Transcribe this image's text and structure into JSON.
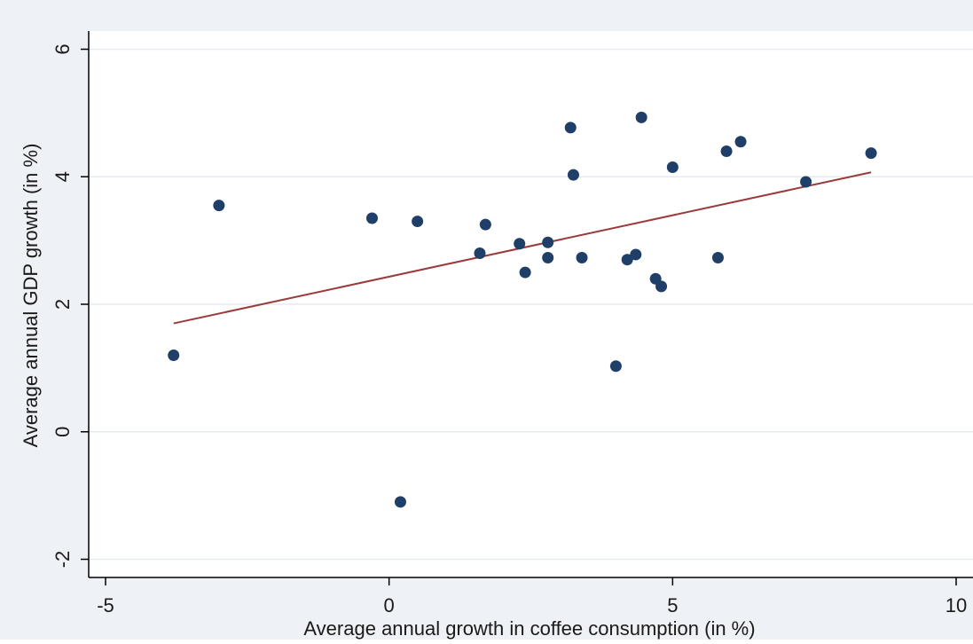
{
  "chart_data": {
    "type": "scatter",
    "xlabel": "Average annual growth in coffee consumption (in %)",
    "ylabel": "Average annual GDP growth (in %)",
    "xlim": [
      -5,
      10
    ],
    "ylim": [
      -2,
      6
    ],
    "x_ticks": [
      -5,
      0,
      5,
      10
    ],
    "y_ticks": [
      -2,
      0,
      2,
      4,
      6
    ],
    "grid": true,
    "colors": {
      "background": "#eef1f5",
      "plot_background": "#ffffff",
      "grid": "#e6ebf2",
      "points": "#1f3f68",
      "fit_line": "#9a3b3b",
      "axis": "#000000"
    },
    "series": [
      {
        "points": [
          {
            "x": -3.8,
            "y": 1.2
          },
          {
            "x": -3.0,
            "y": 3.55
          },
          {
            "x": -0.3,
            "y": 3.35
          },
          {
            "x": 0.2,
            "y": -1.1
          },
          {
            "x": 0.5,
            "y": 3.3
          },
          {
            "x": 1.6,
            "y": 2.8
          },
          {
            "x": 1.7,
            "y": 3.25
          },
          {
            "x": 2.3,
            "y": 2.95
          },
          {
            "x": 2.4,
            "y": 2.5
          },
          {
            "x": 2.8,
            "y": 2.97
          },
          {
            "x": 2.8,
            "y": 2.73
          },
          {
            "x": 3.2,
            "y": 4.77
          },
          {
            "x": 3.25,
            "y": 4.03
          },
          {
            "x": 3.4,
            "y": 2.73
          },
          {
            "x": 4.0,
            "y": 1.03
          },
          {
            "x": 4.2,
            "y": 2.7
          },
          {
            "x": 4.35,
            "y": 2.78
          },
          {
            "x": 4.45,
            "y": 4.93
          },
          {
            "x": 4.7,
            "y": 2.4
          },
          {
            "x": 4.8,
            "y": 2.28
          },
          {
            "x": 5.0,
            "y": 4.15
          },
          {
            "x": 5.8,
            "y": 2.73
          },
          {
            "x": 5.95,
            "y": 4.4
          },
          {
            "x": 6.2,
            "y": 4.55
          },
          {
            "x": 7.35,
            "y": 3.92
          },
          {
            "x": 8.5,
            "y": 4.37
          }
        ]
      },
      {
        "type": "line",
        "x": [
          -3.8,
          8.5
        ],
        "y": [
          1.7,
          4.07
        ]
      }
    ]
  }
}
